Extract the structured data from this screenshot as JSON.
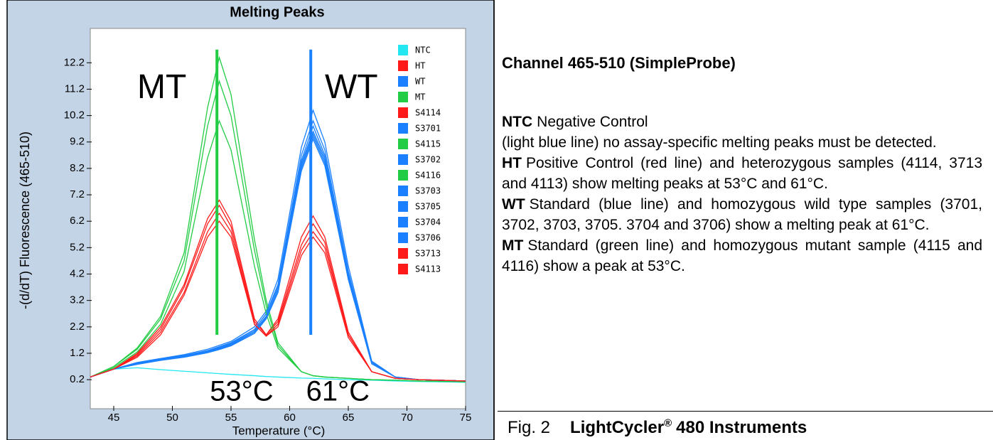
{
  "chart_data": {
    "type": "line",
    "title": "Melting Peaks",
    "xlabel": "Temperature (°C)",
    "ylabel": "-(d/dT) Fluorescence (465-510)",
    "x": [
      43,
      45,
      47,
      49,
      51,
      53,
      54,
      55,
      57,
      58,
      59,
      61,
      62,
      63,
      65,
      67,
      69,
      71,
      75
    ],
    "xlim": [
      43,
      75
    ],
    "xticks": [
      45,
      50,
      55,
      60,
      65,
      70,
      75
    ],
    "ylim": [
      -0.9,
      13.5
    ],
    "yticks": [
      0.2,
      1.2,
      2.2,
      3.2,
      4.2,
      5.2,
      6.2,
      7.2,
      8.2,
      9.2,
      10.2,
      11.2,
      12.2
    ],
    "series": [
      {
        "name": "NTC",
        "color": "#22e6f0",
        "values": [
          0.3,
          0.6,
          0.65,
          0.58,
          0.52,
          0.46,
          0.43,
          0.4,
          0.35,
          0.32,
          0.3,
          0.26,
          0.25,
          0.23,
          0.2,
          0.18,
          0.15,
          0.13,
          0.1
        ]
      },
      {
        "name": "HT",
        "color": "#ff1a1a",
        "values": [
          0.3,
          0.6,
          1.2,
          2.2,
          3.8,
          6.3,
          7.0,
          6.2,
          2.5,
          1.9,
          2.5,
          5.6,
          6.4,
          5.6,
          2.0,
          0.5,
          0.25,
          0.2,
          0.15
        ]
      },
      {
        "name": "WT",
        "color": "#1a80ff",
        "values": [
          0.3,
          0.6,
          0.85,
          1.0,
          1.15,
          1.35,
          1.5,
          1.65,
          2.2,
          2.8,
          4.0,
          9.0,
          10.4,
          9.2,
          4.5,
          0.9,
          0.3,
          0.2,
          0.15
        ]
      },
      {
        "name": "MT",
        "color": "#22cc44",
        "values": [
          0.3,
          0.7,
          1.4,
          2.6,
          5.0,
          10.5,
          12.4,
          11.0,
          5.5,
          3.2,
          1.6,
          0.5,
          0.35,
          0.3,
          0.25,
          0.2,
          0.18,
          0.15,
          0.12
        ]
      },
      {
        "name": "S4114",
        "color": "#ff1a1a",
        "values": [
          0.3,
          0.6,
          1.15,
          2.1,
          3.7,
          6.1,
          6.8,
          6.0,
          2.4,
          1.9,
          2.4,
          5.3,
          6.1,
          5.4,
          1.9,
          0.5,
          0.25,
          0.2,
          0.15
        ]
      },
      {
        "name": "S3701",
        "color": "#1a80ff",
        "values": [
          0.3,
          0.6,
          0.85,
          1.0,
          1.12,
          1.3,
          1.45,
          1.6,
          2.1,
          2.7,
          3.8,
          8.7,
          10.0,
          8.9,
          4.3,
          0.9,
          0.3,
          0.2,
          0.15
        ]
      },
      {
        "name": "S4115",
        "color": "#22cc44",
        "values": [
          0.3,
          0.7,
          1.35,
          2.5,
          4.7,
          9.8,
          11.5,
          10.2,
          5.1,
          3.0,
          1.5,
          0.5,
          0.35,
          0.3,
          0.25,
          0.2,
          0.18,
          0.15,
          0.12
        ]
      },
      {
        "name": "S3702",
        "color": "#1a80ff",
        "values": [
          0.3,
          0.6,
          0.82,
          0.98,
          1.1,
          1.3,
          1.42,
          1.58,
          2.1,
          2.7,
          3.7,
          8.5,
          9.8,
          8.7,
          4.2,
          0.85,
          0.3,
          0.2,
          0.15
        ]
      },
      {
        "name": "S4116",
        "color": "#22cc44",
        "values": [
          0.3,
          0.65,
          1.25,
          2.3,
          4.3,
          8.6,
          10.0,
          8.9,
          4.5,
          2.7,
          1.4,
          0.5,
          0.35,
          0.3,
          0.25,
          0.2,
          0.18,
          0.15,
          0.12
        ]
      },
      {
        "name": "S3703",
        "color": "#1a80ff",
        "values": [
          0.3,
          0.6,
          0.82,
          0.97,
          1.1,
          1.28,
          1.4,
          1.55,
          2.05,
          2.6,
          3.6,
          8.4,
          9.6,
          8.6,
          4.1,
          0.85,
          0.3,
          0.2,
          0.15
        ]
      },
      {
        "name": "S3705",
        "color": "#1a80ff",
        "values": [
          0.3,
          0.6,
          0.8,
          0.95,
          1.08,
          1.26,
          1.38,
          1.52,
          2.0,
          2.6,
          3.6,
          8.3,
          9.5,
          8.5,
          4.1,
          0.85,
          0.3,
          0.2,
          0.15
        ]
      },
      {
        "name": "S3704",
        "color": "#1a80ff",
        "values": [
          0.3,
          0.6,
          0.8,
          0.95,
          1.07,
          1.25,
          1.36,
          1.5,
          2.0,
          2.55,
          3.5,
          8.2,
          9.4,
          8.4,
          4.0,
          0.8,
          0.3,
          0.2,
          0.15
        ]
      },
      {
        "name": "S3706",
        "color": "#1a80ff",
        "values": [
          0.3,
          0.6,
          0.78,
          0.93,
          1.05,
          1.22,
          1.34,
          1.48,
          1.95,
          2.5,
          3.5,
          8.1,
          9.3,
          8.3,
          4.0,
          0.8,
          0.3,
          0.2,
          0.15
        ]
      },
      {
        "name": "S3713",
        "color": "#ff1a1a",
        "values": [
          0.3,
          0.6,
          1.1,
          2.0,
          3.5,
          5.8,
          6.5,
          5.8,
          2.3,
          1.85,
          2.3,
          5.1,
          5.8,
          5.2,
          1.9,
          0.5,
          0.25,
          0.2,
          0.15
        ]
      },
      {
        "name": "S4113",
        "color": "#ff1a1a",
        "values": [
          0.3,
          0.6,
          1.05,
          1.9,
          3.4,
          5.6,
          6.2,
          5.6,
          2.3,
          1.85,
          2.2,
          4.9,
          5.6,
          5.0,
          1.8,
          0.5,
          0.25,
          0.2,
          0.15
        ]
      }
    ],
    "markers": {
      "x": [
        53.8,
        61.8
      ],
      "colors": [
        "#22cc44",
        "#1a80ff"
      ],
      "ymin": 1.9,
      "ymax": 12.7
    },
    "annotations": [
      {
        "text": "MT",
        "x": 47,
        "y": 11.2
      },
      {
        "text": "WT",
        "x": 63,
        "y": 11.2
      },
      {
        "text": "53°C",
        "x": 53.2,
        "y": -0.3
      },
      {
        "text": "61°C",
        "x": 61.4,
        "y": -0.3
      }
    ]
  },
  "panel": {
    "heading": "Channel 465-510 (SimpleProbe)",
    "items": [
      {
        "label": "NTC",
        "text": "Negative Control"
      },
      {
        "text": "(light blue line) no assay-specific melting peaks must be detected."
      },
      {
        "label": "HT",
        "text": "Positive Control (red line) and heterozygous samples (4114, 3713 and 4113) show melting peaks at 53°C and 61°C."
      },
      {
        "label": "WT",
        "text": "Standard (blue line) and homozygous wild type samples (3701, 3702, 3703, 3705. 3704 and 3706) show a melting peak at 61°C."
      },
      {
        "label": "MT",
        "text": "Standard (green line) and homozygous mutant sample (4115 and 4116) show a peak at 53°C."
      }
    ]
  },
  "caption": {
    "fig": "Fig. 2",
    "name": "LightCycler",
    "reg": "®",
    "rest": "480 Instruments"
  }
}
